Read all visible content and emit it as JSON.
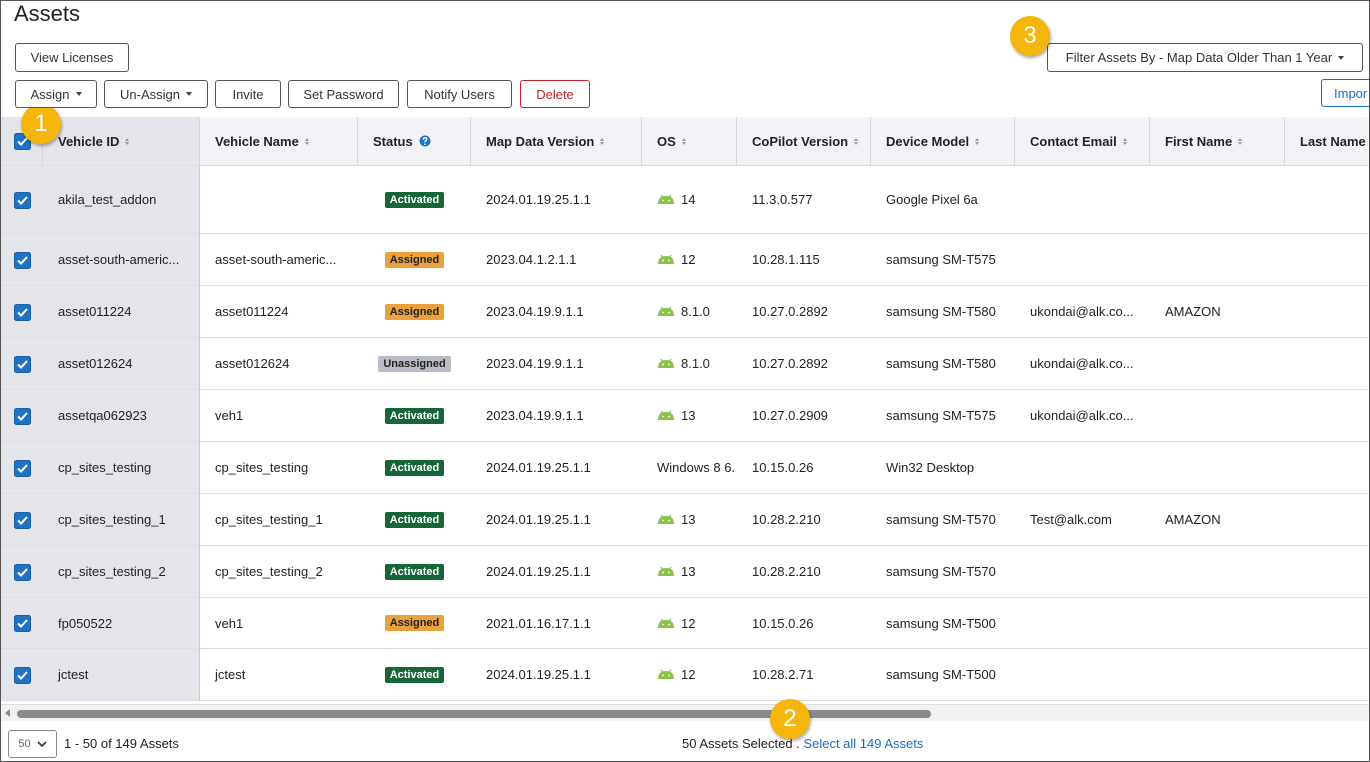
{
  "header": {
    "title": "Assets"
  },
  "toolbar": {
    "view_licenses": "View Licenses",
    "actions": [
      "Assign",
      "Un-Assign",
      "Invite",
      "Set Password",
      "Notify Users",
      "Delete"
    ],
    "filter": "Filter Assets By - Map Data Older Than 1 Year",
    "import": "Impor"
  },
  "annotations": [
    "1",
    "2",
    "3"
  ],
  "table": {
    "columns": [
      "Vehicle ID",
      "Vehicle Name",
      "Status",
      "Map Data Version",
      "OS",
      "CoPilot Version",
      "Device Model",
      "Contact Email",
      "First Name",
      "Last Name"
    ],
    "rows": [
      {
        "cells": [
          "akila_test_addon",
          null,
          "Activated",
          "2024.01.19.25.1.1",
          "14",
          "11.3.0.577",
          "Google Pixel 6a",
          null,
          null,
          null
        ],
        "status_color": "#17663a"
      },
      {
        "cells": [
          "asset-south-americ...",
          "asset-south-americ...",
          "Assigned",
          "2023.04.1.2.1.1",
          "12",
          "10.28.1.115",
          "samsung SM-T575",
          null,
          null,
          null
        ],
        "status_color": "#e8a13c"
      },
      {
        "cells": [
          "asset011224",
          "asset011224",
          "Assigned",
          "2023.04.19.9.1.1",
          "8.1.0",
          "10.27.0.2892",
          "samsung SM-T580",
          "ukondai@alk.co...",
          "AMAZON",
          null
        ],
        "status_color": "#e8a13c"
      },
      {
        "cells": [
          "asset012624",
          "asset012624",
          "Unassigned",
          "2023.04.19.9.1.1",
          "8.1.0",
          "10.27.0.2892",
          "samsung SM-T580",
          "ukondai@alk.co...",
          null,
          null
        ],
        "status_color": "#b9bcc4"
      },
      {
        "cells": [
          "assetqa062923",
          "veh1",
          "Activated",
          "2023.04.19.9.1.1",
          "13",
          "10.27.0.2909",
          "samsung SM-T575",
          "ukondai@alk.co...",
          null,
          null
        ],
        "status_color": "#17663a"
      },
      {
        "cells": [
          "cp_sites_testing",
          "cp_sites_testing",
          "Activated",
          "2024.01.19.25.1.1",
          "Windows 8 6.",
          "10.15.0.26",
          "Win32 Desktop",
          null,
          null,
          null
        ],
        "status_color": "#17663a"
      },
      {
        "cells": [
          "cp_sites_testing_1",
          "cp_sites_testing_1",
          "Activated",
          "2024.01.19.25.1.1",
          "13",
          "10.28.2.210",
          "samsung SM-T570",
          "Test@alk.com",
          "AMAZON",
          null
        ],
        "status_color": "#17663a"
      },
      {
        "cells": [
          "cp_sites_testing_2",
          "cp_sites_testing_2",
          "Activated",
          "2024.01.19.25.1.1",
          "13",
          "10.28.2.210",
          "samsung SM-T570",
          null,
          null,
          null
        ],
        "status_color": "#17663a"
      },
      {
        "cells": [
          "fp050522",
          "veh1",
          "Assigned",
          "2021.01.16.17.1.1",
          "12",
          "10.15.0.26",
          "samsung SM-T500",
          null,
          null,
          null
        ],
        "status_color": "#e8a13c"
      },
      {
        "cells": [
          "jctest",
          "jctest",
          "Activated",
          "2024.01.19.25.1.1",
          "12",
          "10.28.2.71",
          "samsung SM-T500",
          null,
          null,
          null
        ],
        "status_color": "#17663a"
      }
    ]
  },
  "footer": {
    "page_size": "50",
    "range": "1 - 50 of 149 Assets",
    "selected": "50 Assets Selected .",
    "select_all": "Select all 149 Assets"
  }
}
